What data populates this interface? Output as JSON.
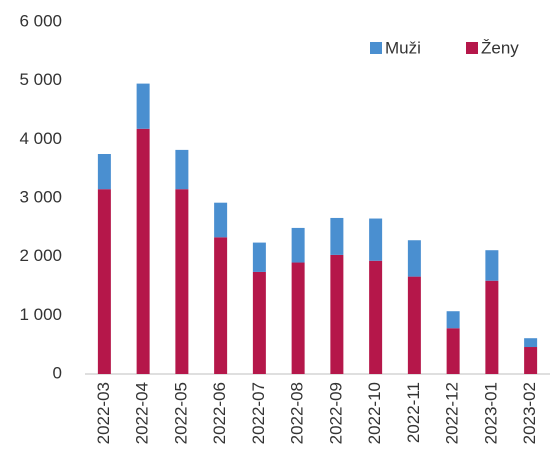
{
  "chart_data": {
    "type": "stacked_bar",
    "categories": [
      "2022-03",
      "2022-04",
      "2022-05",
      "2022-06",
      "2022-07",
      "2022-08",
      "2022-09",
      "2022-10",
      "2022-11",
      "2022-12",
      "2023-01",
      "2023-02"
    ],
    "series": [
      {
        "name": "Muži",
        "color": "#4a8fd0",
        "values": [
          600,
          770,
          670,
          590,
          500,
          590,
          630,
          720,
          620,
          290,
          520,
          150
        ]
      },
      {
        "name": "Ženy",
        "color": "#b5174a",
        "values": [
          3150,
          4180,
          3150,
          2330,
          1740,
          1900,
          2030,
          1930,
          1660,
          780,
          1590,
          460
        ]
      }
    ],
    "ylim": [
      0,
      6000
    ],
    "yticks": [
      0,
      {
        "value": 1000,
        "label": "1 000"
      },
      {
        "value": 2000,
        "label": "2 000"
      },
      {
        "value": 3000,
        "label": "3 000"
      },
      {
        "value": 4000,
        "label": "4 000"
      },
      {
        "value": 5000,
        "label": "5 000"
      },
      {
        "value": 6000,
        "label": "6 000"
      }
    ],
    "legend": "top-right"
  }
}
